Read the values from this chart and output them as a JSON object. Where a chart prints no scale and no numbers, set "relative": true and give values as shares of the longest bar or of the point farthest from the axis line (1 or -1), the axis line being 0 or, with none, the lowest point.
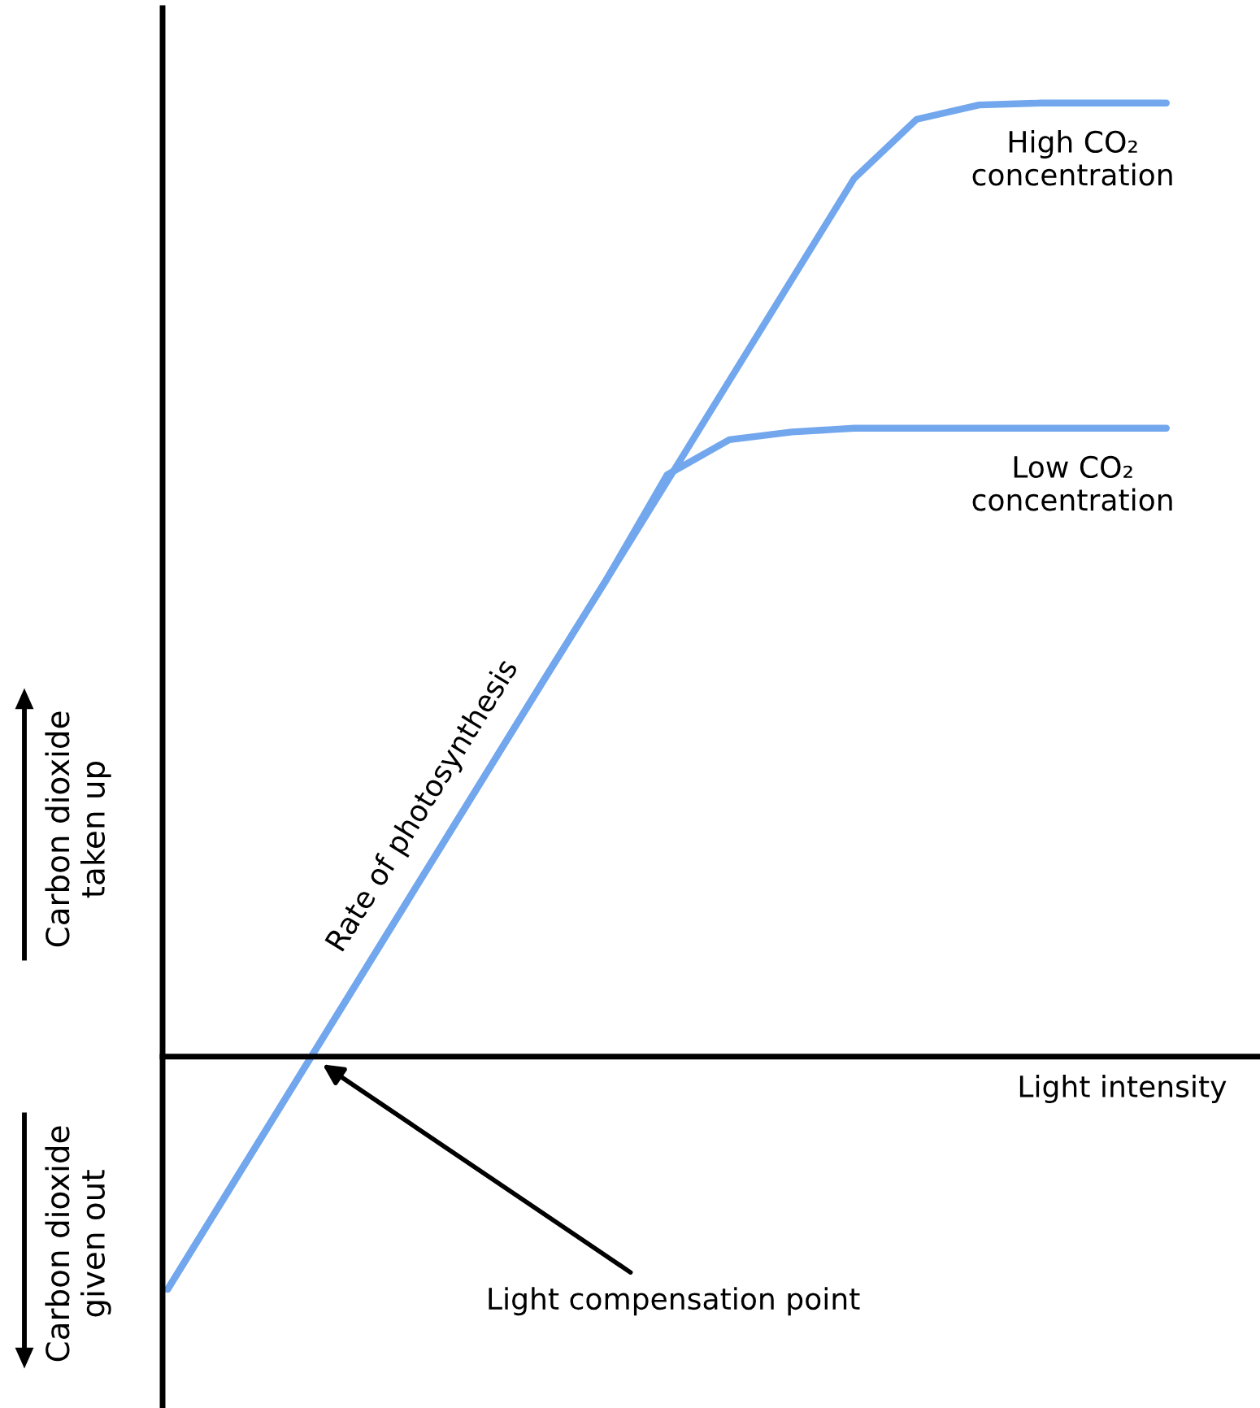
{
  "chart_data": {
    "type": "line",
    "relative": true,
    "xlabel": "Light intensity",
    "ylabel": "Carbon dioxide\ntaken up",
    "categories": [
      null,
      null,
      null,
      null,
      null,
      null,
      null,
      null,
      null,
      null,
      null,
      null,
      null,
      null,
      null,
      null,
      null
    ],
    "series": [
      {
        "name": "High CO₂\nconcentration",
        "color": "#72a7ee",
        "values": [
          -0.244,
          -0.138,
          -0.032,
          0.074,
          0.18,
          0.286,
          0.392,
          0.497,
          0.603,
          0.709,
          0.815,
          0.921,
          0.983,
          0.998,
          1,
          1,
          1
        ]
      },
      {
        "name": "Low CO₂\nconcentration",
        "color": "#72a7ee",
        "values": [
          -0.244,
          -0.138,
          -0.032,
          0.074,
          0.18,
          0.286,
          0.392,
          0.497,
          0.61,
          0.647,
          0.655,
          0.659,
          0.659,
          0.659,
          0.659,
          0.659,
          0.659
        ]
      }
    ],
    "annotations": [
      "Carbon dioxide\ngiven out",
      "Rate of photosynthesis",
      "Light compensation point"
    ],
    "legend": false,
    "marker": "none",
    "line_style": "solid"
  }
}
